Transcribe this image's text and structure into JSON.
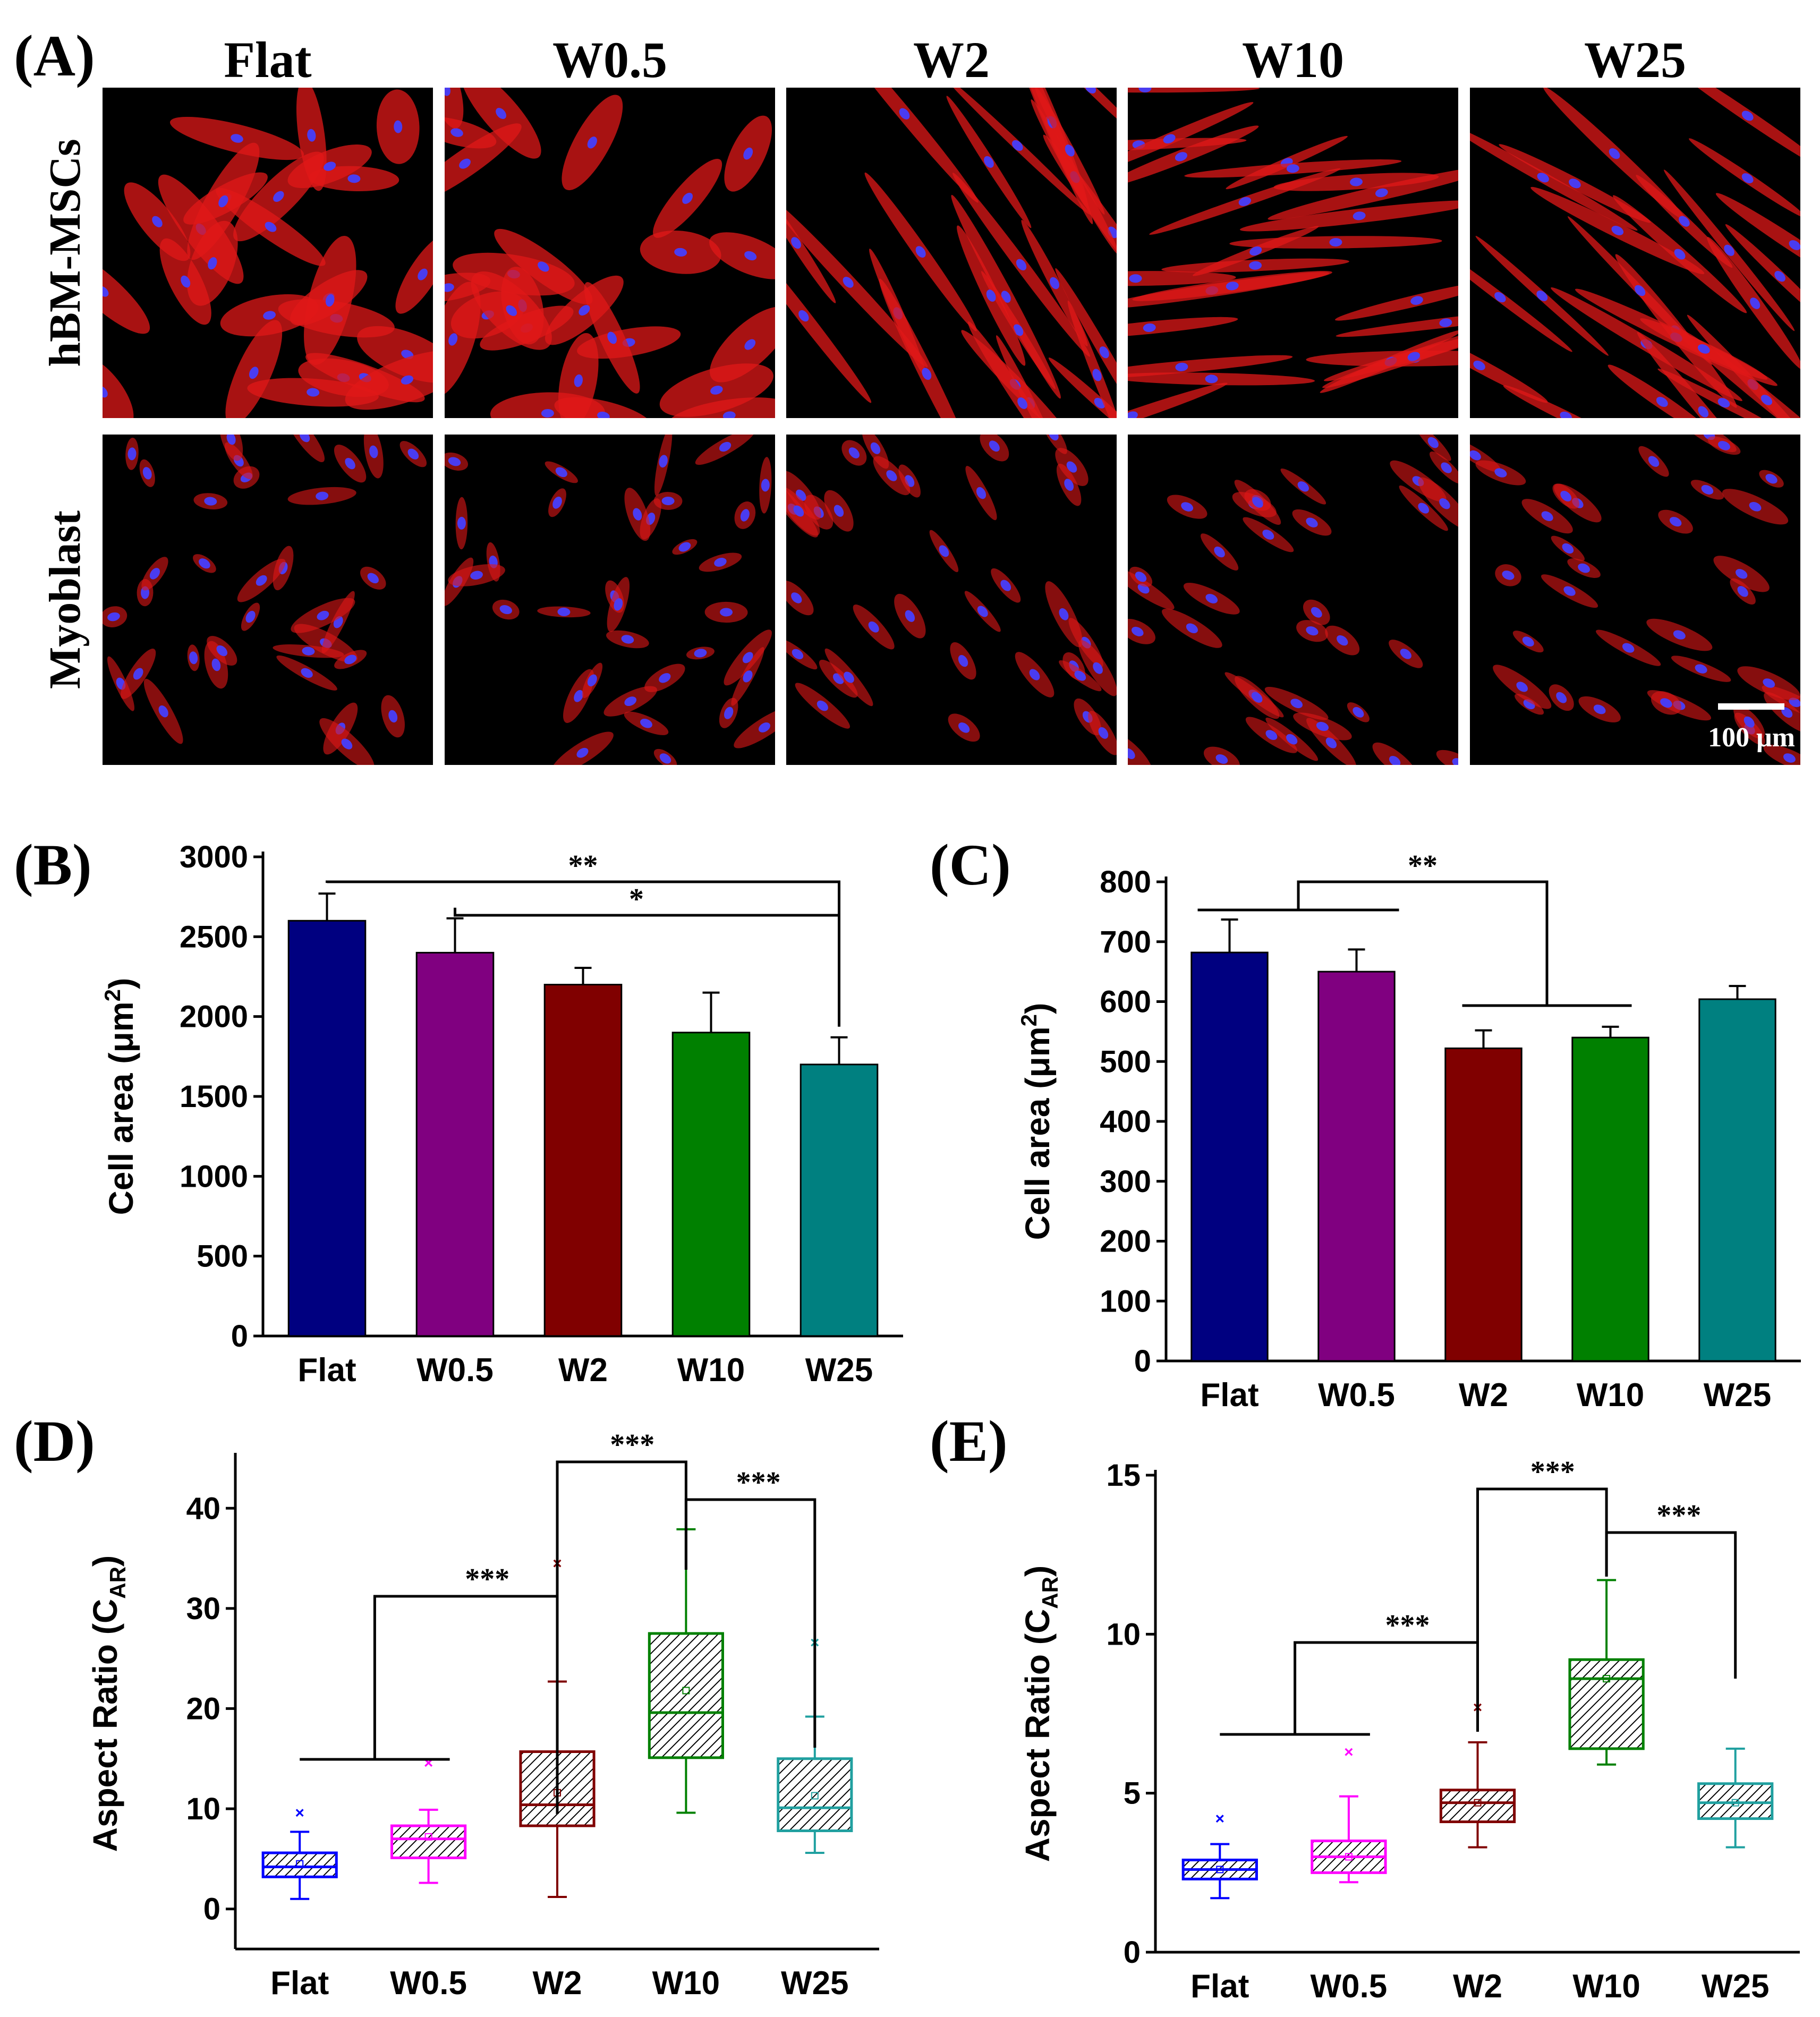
{
  "panel_labels": {
    "a": "(A)",
    "b": "(B)",
    "c": "(C)",
    "d": "(D)",
    "e": "(E)"
  },
  "micrographs": {
    "columns": [
      "Flat",
      "W0.5",
      "W2",
      "W10",
      "W25"
    ],
    "rows": [
      "hBM-MSCs",
      "Myoblast"
    ],
    "scale_bar": "100 μm",
    "colors": {
      "actin": "#e01818",
      "nucleus": "#4a3cf0",
      "background": "#000000"
    }
  },
  "chart_data": [
    {
      "id": "B",
      "type": "bar",
      "categories": [
        "Flat",
        "W0.5",
        "W2",
        "W10",
        "W25"
      ],
      "values": [
        2600,
        2400,
        2200,
        1900,
        1700
      ],
      "errors": [
        170,
        215,
        105,
        250,
        170
      ],
      "colors": [
        "#000080",
        "#800080",
        "#800000",
        "#008000",
        "#008080"
      ],
      "ylabel": "Cell area (μm²)",
      "ylabel_main": "Cell area (",
      "ylabel_unit": "μm",
      "ylabel_sup": "2",
      "ylabel_close": ")",
      "ylim": [
        0,
        3000
      ],
      "yticks": [
        "0",
        "500",
        "1000",
        "1500",
        "2000",
        "2500",
        "3000"
      ],
      "significance": [
        {
          "from": "Flat",
          "to": "W25",
          "label": "**"
        },
        {
          "from": "W0.5",
          "to": "W25",
          "label": "*"
        }
      ]
    },
    {
      "id": "C",
      "type": "bar",
      "categories": [
        "Flat",
        "W0.5",
        "W2",
        "W10",
        "W25"
      ],
      "values": [
        682,
        650,
        522,
        540,
        604
      ],
      "errors": [
        55,
        37,
        30,
        18,
        22
      ],
      "colors": [
        "#000080",
        "#800080",
        "#800000",
        "#008000",
        "#008080"
      ],
      "ylabel": "Cell area (μm²)",
      "ylabel_main": "Cell area (",
      "ylabel_unit": "μm",
      "ylabel_sup": "2",
      "ylabel_close": ")",
      "ylim": [
        0,
        800
      ],
      "yticks": [
        "0",
        "100",
        "200",
        "300",
        "400",
        "500",
        "600",
        "700",
        "800"
      ],
      "significance": [
        {
          "from": [
            "Flat",
            "W0.5"
          ],
          "to": [
            "W2",
            "W10"
          ],
          "label": "**"
        }
      ]
    },
    {
      "id": "D",
      "type": "box",
      "categories": [
        "Flat",
        "W0.5",
        "W2",
        "W10",
        "W25"
      ],
      "boxes": [
        {
          "whisker_low": 1.0,
          "q1": 3.2,
          "median": 4.2,
          "q3": 5.6,
          "whisker_high": 7.7,
          "mean": 4.5,
          "outlier": 9.6
        },
        {
          "whisker_low": 2.6,
          "q1": 5.1,
          "median": 7.0,
          "q3": 8.3,
          "whisker_high": 9.9,
          "mean": 7.2,
          "outlier": 14.6
        },
        {
          "whisker_low": 1.2,
          "q1": 8.3,
          "median": 10.4,
          "q3": 15.7,
          "whisker_high": 22.7,
          "mean": 11.6,
          "outlier": 34.5
        },
        {
          "whisker_low": 9.6,
          "q1": 15.1,
          "median": 19.6,
          "q3": 27.5,
          "whisker_high": 37.9,
          "mean": 21.8,
          "outlier": null
        },
        {
          "whisker_low": 5.6,
          "q1": 7.8,
          "median": 10.1,
          "q3": 15.0,
          "whisker_high": 19.2,
          "mean": 11.3,
          "outlier": 26.6
        }
      ],
      "colors": [
        "#0000ff",
        "#ff00ff",
        "#800000",
        "#008000",
        "#20a0a0"
      ],
      "ylabel_main": "Aspect Ratio (C",
      "ylabel_sub": "AR",
      "ylabel_close": ")",
      "ylim": [
        -4,
        45
      ],
      "yticks": [
        "0",
        "10",
        "20",
        "30",
        "40"
      ],
      "significance": [
        {
          "from": [
            "Flat",
            "W0.5"
          ],
          "to": "W2",
          "label": "***"
        },
        {
          "from": "W2",
          "to": "W10",
          "label": "***"
        },
        {
          "from": "W10",
          "to": "W25",
          "label": "***"
        }
      ]
    },
    {
      "id": "E",
      "type": "box",
      "categories": [
        "Flat",
        "W0.5",
        "W2",
        "W10",
        "W25"
      ],
      "boxes": [
        {
          "whisker_low": 1.7,
          "q1": 2.3,
          "median": 2.6,
          "q3": 2.9,
          "whisker_high": 3.4,
          "mean": 2.6,
          "outlier": 4.2
        },
        {
          "whisker_low": 2.2,
          "q1": 2.5,
          "median": 3.0,
          "q3": 3.5,
          "whisker_high": 4.9,
          "mean": 3.0,
          "outlier": 6.3
        },
        {
          "whisker_low": 3.3,
          "q1": 4.1,
          "median": 4.7,
          "q3": 5.1,
          "whisker_high": 6.6,
          "mean": 4.7,
          "outlier": 7.7
        },
        {
          "whisker_low": 5.9,
          "q1": 6.4,
          "median": 8.6,
          "q3": 9.2,
          "whisker_high": 11.7,
          "mean": 8.6,
          "outlier": null
        },
        {
          "whisker_low": 3.3,
          "q1": 4.2,
          "median": 4.7,
          "q3": 5.3,
          "whisker_high": 6.4,
          "mean": 4.7,
          "outlier": null
        }
      ],
      "colors": [
        "#0000ff",
        "#ff00ff",
        "#800000",
        "#008000",
        "#20a0a0"
      ],
      "ylabel_main": "Aspect Ratio (C",
      "ylabel_sub": "AR",
      "ylabel_close": ")",
      "ylim": [
        0,
        15
      ],
      "yticks": [
        "0",
        "5",
        "10",
        "15"
      ],
      "significance": [
        {
          "from": [
            "Flat",
            "W0.5"
          ],
          "to": "W2",
          "label": "***"
        },
        {
          "from": "W2",
          "to": "W10",
          "label": "***"
        },
        {
          "from": "W10",
          "to": "W25",
          "label": "***"
        }
      ]
    }
  ]
}
